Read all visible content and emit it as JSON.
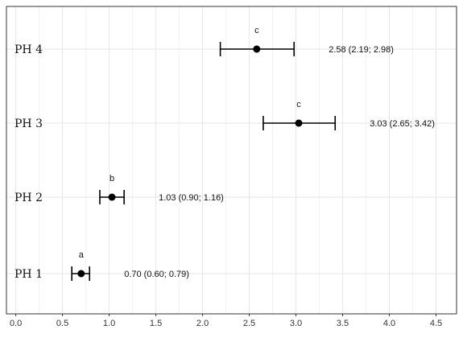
{
  "chart_data": {
    "type": "scatter",
    "orientation": "horizontal-forest",
    "title": "",
    "xlabel": "",
    "ylabel": "",
    "xlim": [
      -0.1,
      4.72
    ],
    "x_ticks": [
      0.0,
      0.5,
      1.0,
      1.5,
      2.0,
      2.5,
      3.0,
      3.5,
      4.0,
      4.5
    ],
    "x_tick_labels": [
      "0.0",
      "0.5",
      "1.0",
      "1.5",
      "2.0",
      "2.5",
      "3.0",
      "3.5",
      "4.0",
      "4.5"
    ],
    "grid": true,
    "legend": "none",
    "categories": [
      "PH 1",
      "PH 2",
      "PH 3",
      "PH 4"
    ],
    "estimates": [
      0.7,
      1.03,
      3.03,
      2.58
    ],
    "ci_lower": [
      0.6,
      0.9,
      2.65,
      2.19
    ],
    "ci_upper": [
      0.79,
      1.16,
      3.42,
      2.98
    ],
    "value_labels": [
      "0.70 (0.60; 0.79)",
      "1.03 (0.90; 1.16)",
      "3.03 (2.65; 3.42)",
      "2.58 (2.19; 2.98)"
    ],
    "group_letters": [
      "a",
      "b",
      "c",
      "c"
    ],
    "colors": {
      "point": "#000000",
      "grid": "#e6e6e6",
      "border": "#333333"
    }
  }
}
